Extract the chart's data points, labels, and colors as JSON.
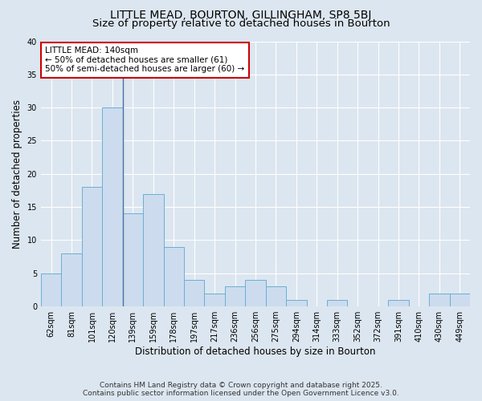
{
  "title_line1": "LITTLE MEAD, BOURTON, GILLINGHAM, SP8 5BJ",
  "title_line2": "Size of property relative to detached houses in Bourton",
  "xlabel": "Distribution of detached houses by size in Bourton",
  "ylabel": "Number of detached properties",
  "categories": [
    "62sqm",
    "81sqm",
    "101sqm",
    "120sqm",
    "139sqm",
    "159sqm",
    "178sqm",
    "197sqm",
    "217sqm",
    "236sqm",
    "256sqm",
    "275sqm",
    "294sqm",
    "314sqm",
    "333sqm",
    "352sqm",
    "372sqm",
    "391sqm",
    "410sqm",
    "430sqm",
    "449sqm"
  ],
  "values": [
    5,
    8,
    18,
    30,
    14,
    17,
    9,
    4,
    2,
    3,
    4,
    3,
    1,
    0,
    1,
    0,
    0,
    1,
    0,
    2,
    2
  ],
  "bar_color": "#ccdcee",
  "bar_edge_color": "#6baed6",
  "vline_x_index": 3.5,
  "vline_color": "#4a6fa5",
  "annotation_text": "LITTLE MEAD: 140sqm\n← 50% of detached houses are smaller (61)\n50% of semi-detached houses are larger (60) →",
  "annotation_box_facecolor": "white",
  "annotation_box_edgecolor": "#cc0000",
  "ylim": [
    0,
    40
  ],
  "yticks": [
    0,
    5,
    10,
    15,
    20,
    25,
    30,
    35,
    40
  ],
  "background_color": "#dce6f0",
  "plot_background": "#dce6f0",
  "footer_line1": "Contains HM Land Registry data © Crown copyright and database right 2025.",
  "footer_line2": "Contains public sector information licensed under the Open Government Licence v3.0.",
  "title_fontsize": 10,
  "subtitle_fontsize": 9.5,
  "axis_label_fontsize": 8.5,
  "tick_fontsize": 7,
  "annotation_fontsize": 7.5,
  "footer_fontsize": 6.5
}
